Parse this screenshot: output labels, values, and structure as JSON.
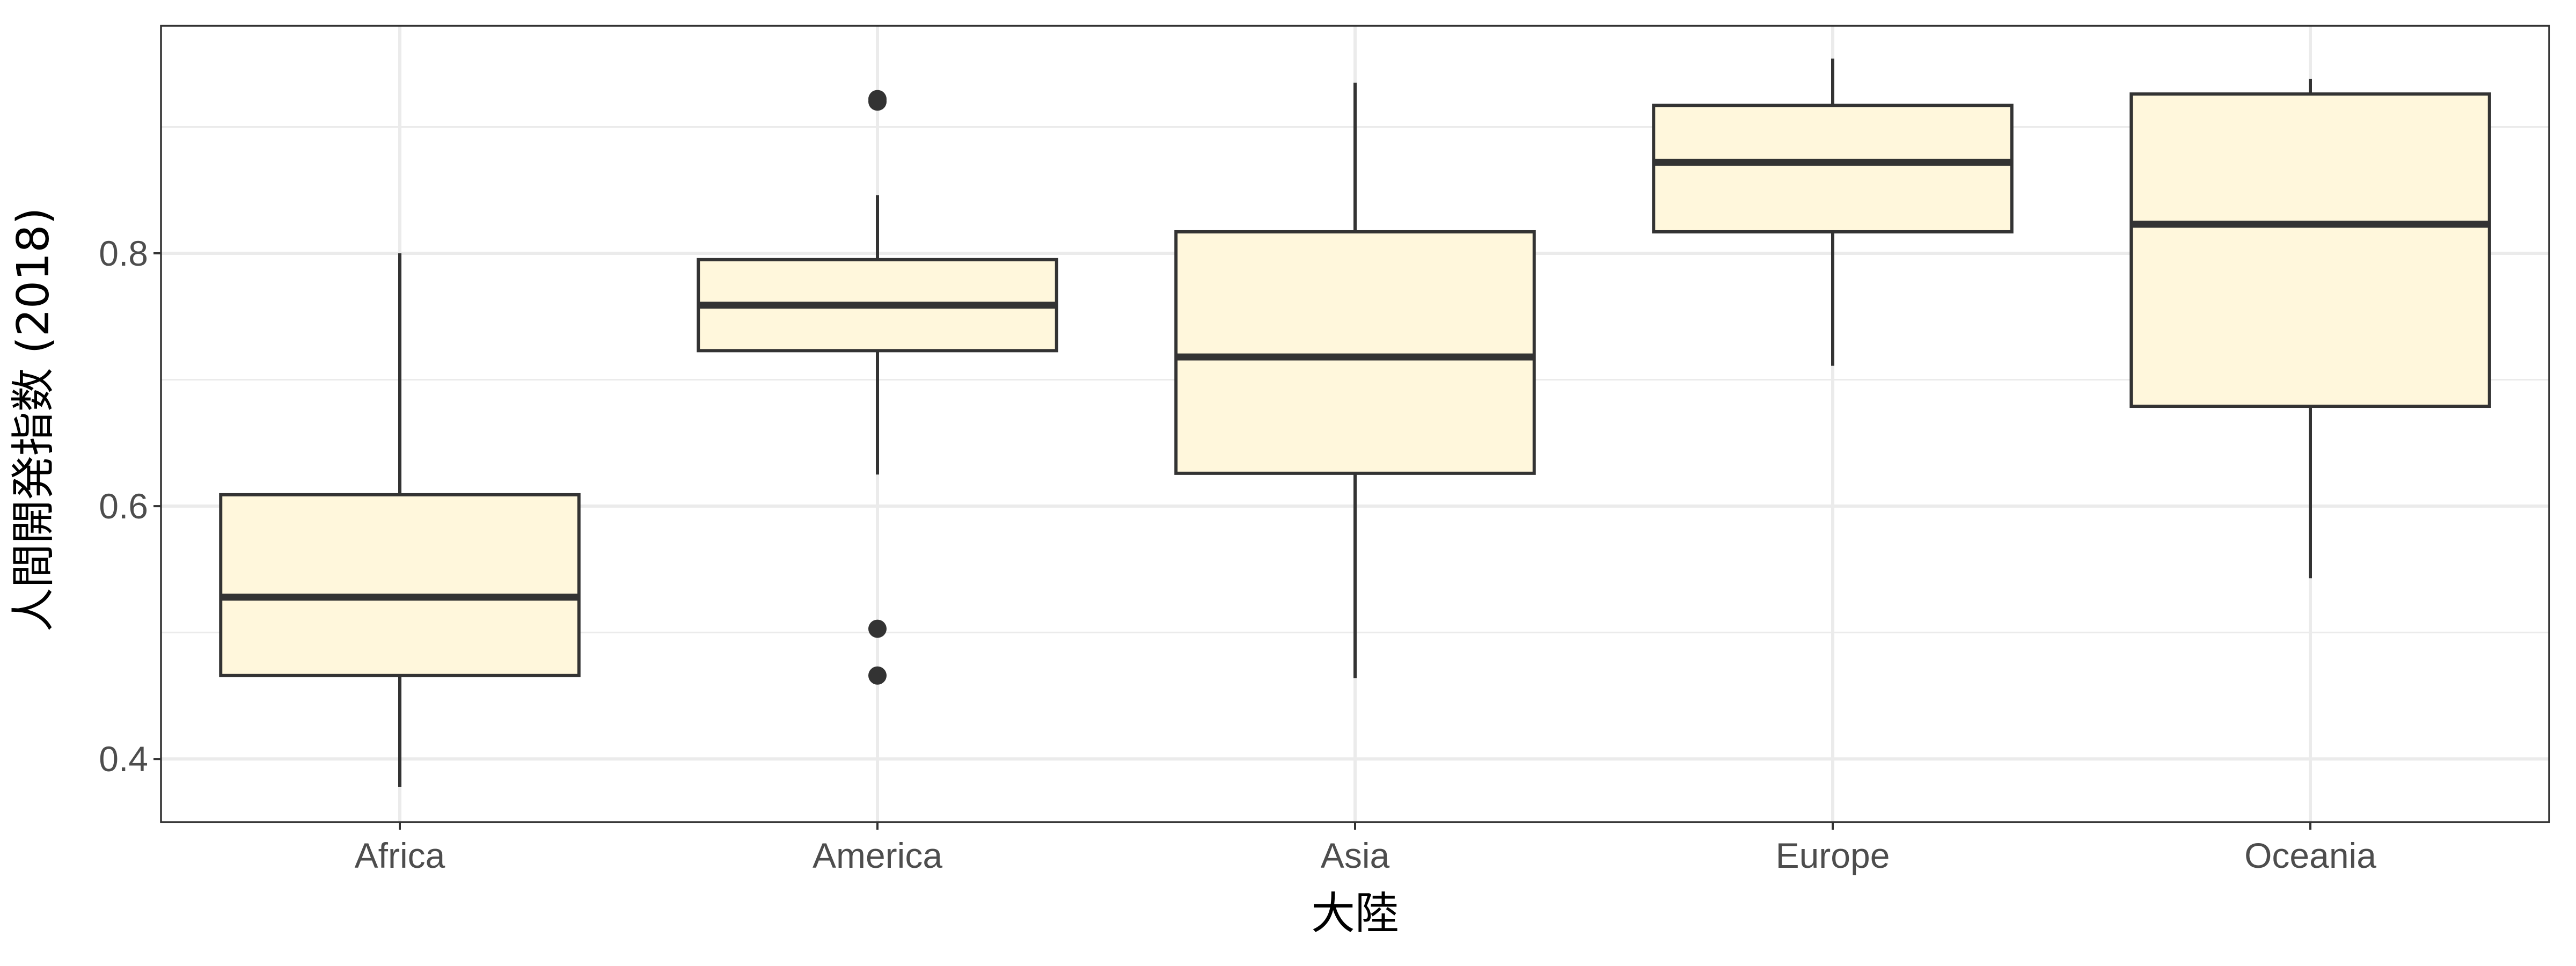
{
  "chart_data": {
    "type": "boxplot",
    "title": "",
    "xlabel": "大陸",
    "ylabel": "人間開発指数 (2018)",
    "ylim": [
      0.35,
      0.98
    ],
    "yticks": [
      0.4,
      0.6,
      0.8
    ],
    "ytick_labels": [
      "0.4",
      "0.6",
      "0.8"
    ],
    "grid": true,
    "legend": "none",
    "colors": {
      "box_fill": "#fff7dc",
      "box_stroke": "#333333",
      "grid": "#ebebeb",
      "panel_border": "#333333"
    },
    "categories": [
      "Africa",
      "America",
      "Asia",
      "Europe",
      "Oceania"
    ],
    "boxes": [
      {
        "category": "Africa",
        "whisker_low": 0.378,
        "q1": 0.466,
        "median": 0.528,
        "q3": 0.609,
        "whisker_high": 0.8,
        "outliers": []
      },
      {
        "category": "America",
        "whisker_low": 0.625,
        "q1": 0.723,
        "median": 0.759,
        "q3": 0.795,
        "whisker_high": 0.846,
        "outliers": [
          0.922,
          0.92,
          0.503,
          0.466
        ]
      },
      {
        "category": "Asia",
        "whisker_low": 0.464,
        "q1": 0.626,
        "median": 0.718,
        "q3": 0.817,
        "whisker_high": 0.935,
        "outliers": []
      },
      {
        "category": "Europe",
        "whisker_low": 0.711,
        "q1": 0.817,
        "median": 0.872,
        "q3": 0.917,
        "whisker_high": 0.954,
        "outliers": []
      },
      {
        "category": "Oceania",
        "whisker_low": 0.543,
        "q1": 0.679,
        "median": 0.823,
        "q3": 0.926,
        "whisker_high": 0.938,
        "outliers": []
      }
    ]
  }
}
